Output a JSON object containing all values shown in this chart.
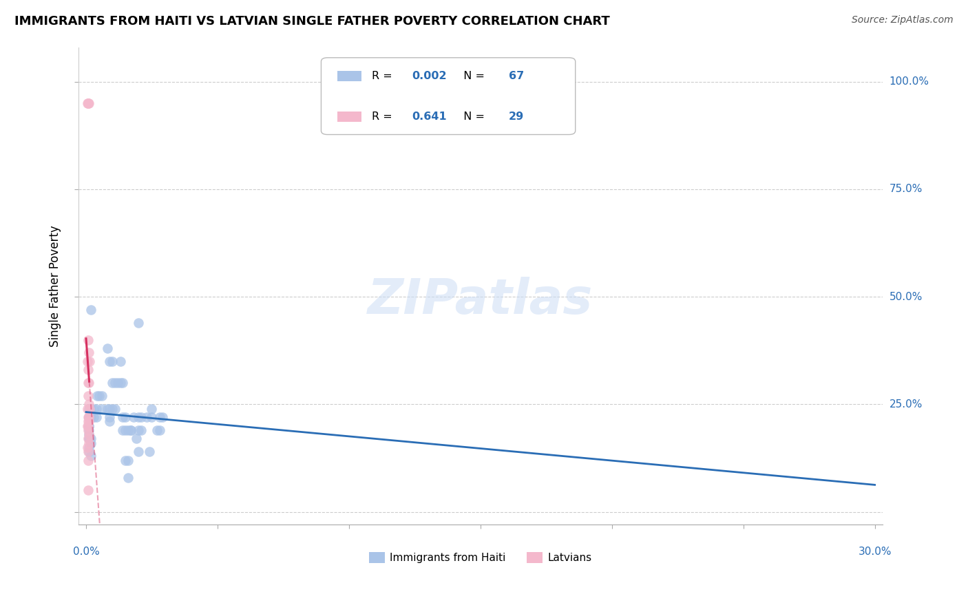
{
  "title": "IMMIGRANTS FROM HAITI VS LATVIAN SINGLE FATHER POVERTY CORRELATION CHART",
  "source": "Source: ZipAtlas.com",
  "ylabel": "Single Father Poverty",
  "legend_blue_R": "0.002",
  "legend_blue_N": "67",
  "legend_pink_R": "0.641",
  "legend_pink_N": "29",
  "legend_blue_label": "Immigrants from Haiti",
  "legend_pink_label": "Latvians",
  "blue_color": "#aac4e8",
  "pink_color": "#f4b8cc",
  "trendline_blue_color": "#2a6db5",
  "trendline_pink_color": "#d63060",
  "haiti_points": [
    [
      0.18,
      47.0
    ],
    [
      0.1,
      22.0
    ],
    [
      0.1,
      18.0
    ],
    [
      0.1,
      20.0
    ],
    [
      0.1,
      15.0
    ],
    [
      0.18,
      13.0
    ],
    [
      0.1,
      24.0
    ],
    [
      0.18,
      24.0
    ],
    [
      0.18,
      22.0
    ],
    [
      0.1,
      22.0
    ],
    [
      0.1,
      19.0
    ],
    [
      0.18,
      23.0
    ],
    [
      0.28,
      22.0
    ],
    [
      0.38,
      22.0
    ],
    [
      0.1,
      14.0
    ],
    [
      0.1,
      20.0
    ],
    [
      0.1,
      17.0
    ],
    [
      0.18,
      17.0
    ],
    [
      0.1,
      17.0
    ],
    [
      0.18,
      16.0
    ],
    [
      0.28,
      24.0
    ],
    [
      0.38,
      24.0
    ],
    [
      0.42,
      27.0
    ],
    [
      0.5,
      27.0
    ],
    [
      0.6,
      27.0
    ],
    [
      0.6,
      24.0
    ],
    [
      0.8,
      38.0
    ],
    [
      0.9,
      35.0
    ],
    [
      1.0,
      35.0
    ],
    [
      0.8,
      24.0
    ],
    [
      0.9,
      24.0
    ],
    [
      1.0,
      24.0
    ],
    [
      1.1,
      24.0
    ],
    [
      1.0,
      30.0
    ],
    [
      1.1,
      30.0
    ],
    [
      1.2,
      30.0
    ],
    [
      1.3,
      30.0
    ],
    [
      0.9,
      21.0
    ],
    [
      0.9,
      22.0
    ],
    [
      1.3,
      35.0
    ],
    [
      1.4,
      30.0
    ],
    [
      1.4,
      22.0
    ],
    [
      1.4,
      19.0
    ],
    [
      1.5,
      22.0
    ],
    [
      1.5,
      19.0
    ],
    [
      1.5,
      12.0
    ],
    [
      1.6,
      19.0
    ],
    [
      1.6,
      12.0
    ],
    [
      1.6,
      8.0
    ],
    [
      1.7,
      19.0
    ],
    [
      1.7,
      19.0
    ],
    [
      1.8,
      22.0
    ],
    [
      1.9,
      17.0
    ],
    [
      2.0,
      22.0
    ],
    [
      2.0,
      19.0
    ],
    [
      2.0,
      14.0
    ],
    [
      2.1,
      22.0
    ],
    [
      2.1,
      19.0
    ],
    [
      2.3,
      22.0
    ],
    [
      2.4,
      14.0
    ],
    [
      2.5,
      24.0
    ],
    [
      2.7,
      19.0
    ],
    [
      2.8,
      19.0
    ],
    [
      2.9,
      22.0
    ],
    [
      2.0,
      44.0
    ],
    [
      2.5,
      22.0
    ],
    [
      2.8,
      22.0
    ]
  ],
  "latvian_points": [
    [
      0.05,
      95.0
    ],
    [
      0.07,
      95.0
    ],
    [
      0.09,
      95.0
    ],
    [
      0.11,
      95.0
    ],
    [
      0.08,
      40.0
    ],
    [
      0.1,
      37.0
    ],
    [
      0.06,
      35.0
    ],
    [
      0.12,
      35.0
    ],
    [
      0.09,
      33.0
    ],
    [
      0.07,
      30.0
    ],
    [
      0.11,
      30.0
    ],
    [
      0.08,
      27.0
    ],
    [
      0.1,
      25.0
    ],
    [
      0.06,
      24.0
    ],
    [
      0.12,
      24.0
    ],
    [
      0.07,
      22.0
    ],
    [
      0.11,
      22.0
    ],
    [
      0.08,
      21.0
    ],
    [
      0.1,
      21.0
    ],
    [
      0.06,
      20.0
    ],
    [
      0.09,
      20.0
    ],
    [
      0.07,
      19.0
    ],
    [
      0.11,
      18.0
    ],
    [
      0.08,
      17.0
    ],
    [
      0.1,
      16.0
    ],
    [
      0.06,
      15.0
    ],
    [
      0.09,
      14.0
    ],
    [
      0.07,
      12.0
    ],
    [
      0.08,
      5.0
    ]
  ],
  "xlim_min": 0,
  "xlim_max": 30,
  "ylim_min": -3,
  "ylim_max": 108,
  "ytick_positions": [
    0,
    25,
    50,
    75,
    100
  ],
  "ytick_labels": [
    "",
    "25.0%",
    "50.0%",
    "75.0%",
    "100.0%"
  ],
  "xtick_positions": [
    0,
    5,
    10,
    15,
    20,
    25,
    30
  ]
}
